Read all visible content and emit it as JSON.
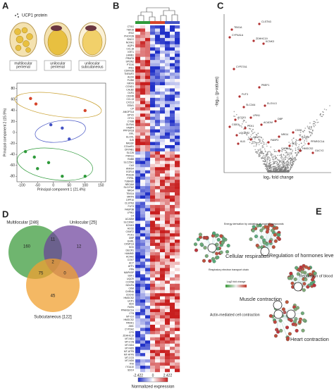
{
  "panels": {
    "a": {
      "label": "A",
      "legend": "UCP1 protein",
      "cells": [
        "multilocular perirenal",
        "unilocular perirenal",
        "unilocular subcutaneous"
      ],
      "pca": {
        "xlabel": "Principal component 1 (21.4%)",
        "ylabel": "Principal component 2 (15.9%)",
        "xlim": [
          -115,
          165
        ],
        "ylim": [
          -90,
          90
        ],
        "xticks": [
          -100,
          -50,
          0,
          50,
          100,
          150
        ],
        "yticks": [
          80,
          60,
          40,
          20,
          0,
          -20,
          -40,
          -60,
          -80
        ],
        "groups": [
          {
            "color": "#d6452b",
            "x": [
              -55,
              -72,
              100
            ],
            "y": [
              52,
              62,
              40
            ]
          },
          {
            "color": "#4453c4",
            "x": [
              -8,
              28,
              50
            ],
            "y": [
              14,
              8,
              -12
            ]
          },
          {
            "color": "#2e9a3a",
            "x": [
              -88,
              -60,
              -50,
              -15,
              28,
              100
            ],
            "y": [
              -35,
              -45,
              -66,
              -55,
              -80,
              -80
            ]
          }
        ]
      }
    },
    "b": {
      "label": "B",
      "scale_min": "-2.422",
      "scale_mid": "0",
      "scale_max": "2.422",
      "scale_title": "Normalized expression",
      "genes": [
        "CTSG",
        "TBX15",
        "IRX2",
        "PHOX2B",
        "SNCG",
        "NOVA1",
        "AQP4",
        "CCL18",
        "KRT1",
        "LAMB1",
        "PRMT8",
        "SPON2",
        "PTGIS",
        "IRS1",
        "CDKN2B",
        "TNFAIP2",
        "ALDH",
        "PLIN5",
        "NRXN",
        "CCND1",
        "CALB2",
        "OLR1",
        "CD248",
        "CCL13",
        "CXCL6",
        "ESM1",
        "CP",
        "ANGPTL8",
        "DPYD",
        "OTX1",
        "CYBB",
        "OLFM4",
        "FABP4",
        "PPP1R1B",
        "RPL",
        "ELOVL",
        "GJ5",
        "RASSF",
        "C21orf91",
        "CRYAB1",
        "SLC26",
        "PHKG1",
        "RAB8",
        "SLC25A1",
        "CA3",
        "ANKS4",
        "EGFL6",
        "PDE3A",
        "PIPSL",
        "TUBA3D",
        "NRCAM",
        "SLC27A2",
        "NRG4",
        "TBX1A",
        "MRTN",
        "DPP10",
        "CLSTN3",
        "FUT3",
        "FABP3B",
        "LPIN1",
        "C4",
        "ACADM",
        "SLC30A2",
        "KCNK3",
        "ACO2",
        "CKMT2",
        "PCK1",
        "DBP",
        "EHRL",
        "CKMT1A",
        "SCD",
        "DECR1",
        "HAMMD",
        "ACAA2",
        "COX7",
        "ACY",
        "ATP1",
        "PPA",
        "MAPKBP",
        "SDF1",
        "UQCR",
        "COX5B",
        "NDUFA",
        "CKM",
        "CHRNA",
        "CDC42",
        "HMGCS2",
        "UCP1",
        "ADH",
        "FASN",
        "PPARGC1A",
        "CTB",
        "MT-CO",
        "HMGCS2",
        "PANK1",
        "AMC",
        "CYP2A2",
        "CPS",
        "ZDHHC19",
        "MT-ND1",
        "MT-CYB",
        "MT-ND4",
        "MT-ND5",
        "MT-ATP8",
        "MT-ATP6",
        "MT-CO3",
        "MT-ND6",
        "ITIH",
        "ITGA10",
        "SDC4"
      ]
    },
    "c": {
      "label": "C",
      "ylabel": "-log₁₀ (p-values)",
      "xlabel": "log₂ fold change",
      "genes": [
        "CLSTN3",
        "TBX1A",
        "CYP4A1A",
        "ZDHHC19",
        "KCNK3",
        "CYP27A1",
        "PBEF1",
        "FUT3",
        "SLC2A4",
        "ELOVL3",
        "ACOX1",
        "LPIN1",
        "PCK1",
        "ACADM",
        "DBP",
        "CD36",
        "UCP1",
        "SCD",
        "PPARGC1A",
        "HMGCS2",
        "KLB",
        "CKMT1",
        "FABP3",
        "NRG4",
        "UQCRC2",
        "CIDEA",
        "GUCY2",
        "CHRNA"
      ]
    },
    "d": {
      "label": "D",
      "sets": [
        "Multilocular [246]",
        "Unilocular [25]",
        "Subcutaneous [122]"
      ],
      "counts": [
        "160",
        "11",
        "12",
        "75",
        "2",
        "0",
        "45"
      ]
    },
    "e": {
      "label": "E",
      "legend": "Log2 fold change",
      "terms": [
        "Energy derivation by oxidation of organic compounds",
        "Cellular respiration",
        "Regulation of hormones level",
        "Respiratory electron transport chain",
        "Regulation of blood circulation",
        "Muscle contraction",
        "Actin-mediated cell contraction",
        "Heart contraction"
      ]
    }
  }
}
